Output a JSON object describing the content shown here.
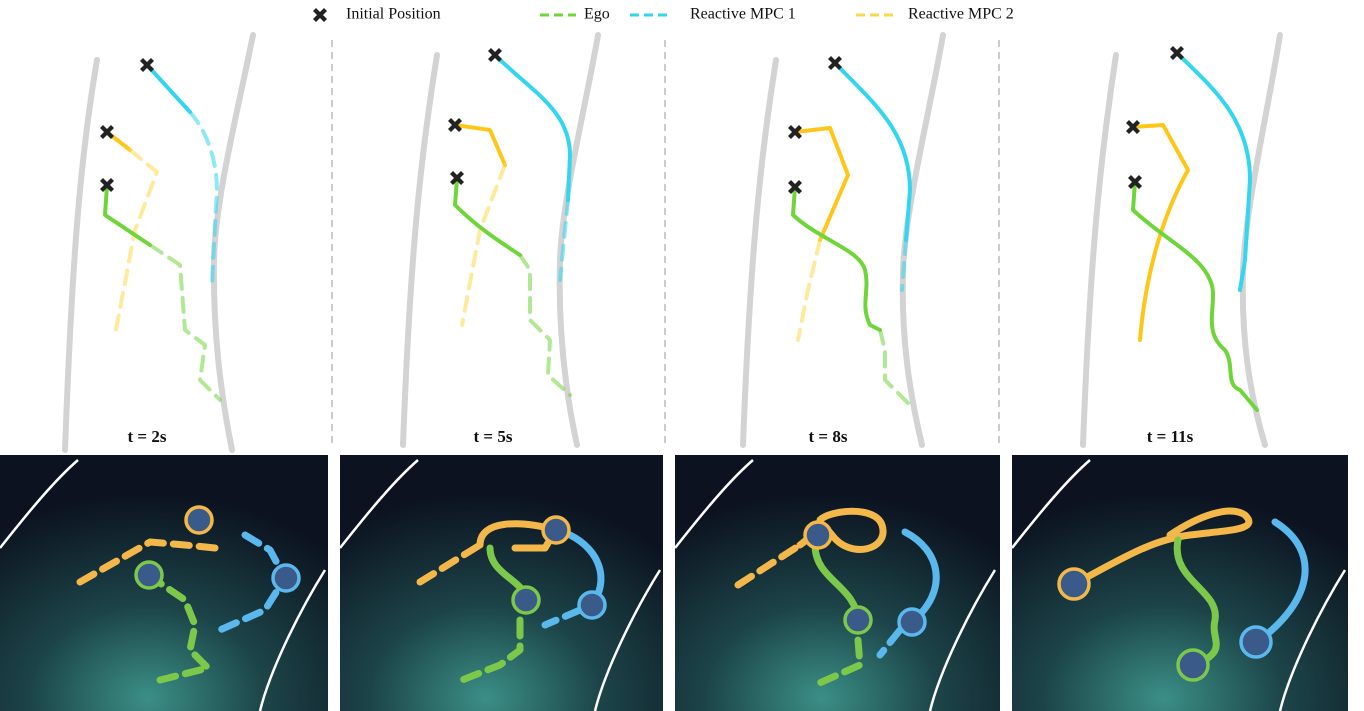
{
  "legend": [
    {
      "label": "Initial Position"
    },
    {
      "label": "Ego"
    },
    {
      "label": "Reactive MPC 1"
    },
    {
      "label": "Reactive MPC 2"
    }
  ],
  "panels": [
    {
      "label": "t = 2s"
    },
    {
      "label": "t = 5s"
    },
    {
      "label": "t = 8s"
    },
    {
      "label": "t = 11s"
    }
  ]
}
